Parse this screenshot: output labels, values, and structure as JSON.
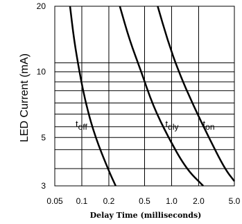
{
  "chart_data": {
    "type": "line",
    "title": "",
    "xlabel": "Delay Time (milliseconds)",
    "ylabel": "LED Current (mA)",
    "x_scale": "log",
    "y_scale": "log",
    "xlim": [
      0.05,
      5.0
    ],
    "ylim": [
      3,
      20
    ],
    "x_ticks": [
      "0.05",
      "0.1",
      "0.2",
      "0.5",
      "1.0",
      "2.0",
      "5.0"
    ],
    "x_tick_values": [
      0.05,
      0.1,
      0.2,
      0.5,
      1.0,
      2.0,
      5.0
    ],
    "y_ticks": [
      "3",
      "5",
      "10",
      "20"
    ],
    "y_tick_values": [
      3,
      5,
      10,
      20
    ],
    "y_grid_values": [
      3,
      3.6,
      4.4,
      5,
      5.6,
      6.4,
      7.2,
      8.2,
      9,
      10,
      11
    ],
    "grid": true,
    "series": [
      {
        "name": "off",
        "label_main": "t",
        "label_sub": "off",
        "x": [
          0.074,
          0.082,
          0.094,
          0.112,
          0.142,
          0.195,
          0.238
        ],
        "y": [
          20,
          14,
          10,
          7,
          5,
          3.6,
          3
        ]
      },
      {
        "name": "dly",
        "label_main": "t",
        "label_sub": "dly",
        "x": [
          0.265,
          0.34,
          0.46,
          0.62,
          0.92,
          1.45,
          2.25
        ],
        "y": [
          20,
          14,
          10,
          7,
          5,
          3.6,
          3
        ]
      },
      {
        "name": "on",
        "label_main": "t",
        "label_sub": "on",
        "x": [
          0.7,
          0.9,
          1.2,
          1.75,
          2.6,
          3.9,
          5.0
        ],
        "y": [
          20,
          14,
          10,
          7,
          5,
          3.6,
          3.15
        ]
      }
    ]
  }
}
